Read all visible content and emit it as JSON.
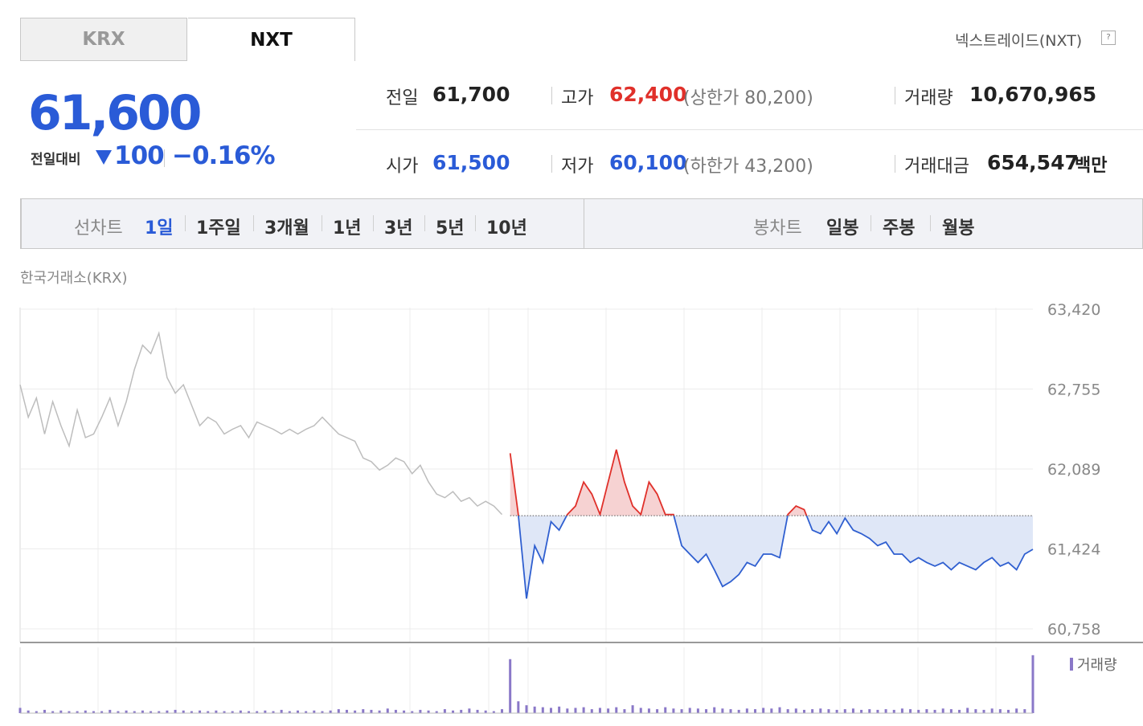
{
  "tabs": [
    "KRX",
    "NXT"
  ],
  "market_link": "넥스트레이드(NXT)",
  "price": {
    "current": "61,600",
    "change_label": "전일대비",
    "change": "100",
    "change_pct": "−0.16%"
  },
  "quotes": [
    {
      "label": "전일",
      "value": "61,700"
    },
    {
      "label": "고가",
      "value": "62,400",
      "note": "(상한가 80,200)"
    },
    {
      "label": "거래량",
      "value": "10,670,965"
    },
    {
      "label": "시가",
      "value": "61,500"
    },
    {
      "label": "저가",
      "value": "60,100",
      "note": "(하한가 43,200)"
    },
    {
      "label": "거래대금",
      "value": "654,547",
      "unit": "백만"
    }
  ],
  "line_tabs": {
    "label": "선차트",
    "items": [
      "1일",
      "1주일",
      "3개월",
      "1년",
      "3년",
      "5년",
      "10년"
    ]
  },
  "candle_tabs": {
    "label": "봉차트",
    "items": [
      "일봉",
      "주봉",
      "월봉"
    ]
  },
  "source": "한국거래소(KRX)",
  "chart_data": [
    {
      "type": "line",
      "ylim": [
        60644,
        63433
      ],
      "yticks": [
        {
          "value": 63420,
          "label": "63,420"
        },
        {
          "value": 62755,
          "label": "62,755"
        },
        {
          "value": 62089,
          "label": "62,089"
        },
        {
          "value": 61424,
          "label": "61,424"
        },
        {
          "value": 60758,
          "label": "60,758"
        }
      ],
      "grid": true,
      "baseline": 61700,
      "series": [
        {
          "color": "#bdbdbd",
          "values": [
            62790,
            62520,
            62680,
            62380,
            62650,
            62450,
            62280,
            62580,
            62350,
            62380,
            62520,
            62680,
            62450,
            62650,
            62920,
            63120,
            63050,
            63220,
            62850,
            62720,
            62790,
            62620,
            62450,
            62520,
            62480,
            62380,
            62420,
            62450,
            62350,
            62480,
            62450,
            62420,
            62380,
            62420,
            62380,
            62420,
            62450,
            62520,
            62450,
            62380,
            62350,
            62320,
            62180,
            62150,
            62080,
            62120,
            62180,
            62150,
            62050,
            62120,
            61980,
            61880,
            61850,
            61900,
            61820,
            61850,
            61780,
            61820,
            61780,
            61710,
            null,
            null,
            null,
            null,
            null,
            null,
            null,
            null,
            null,
            null,
            null,
            null,
            null,
            null,
            null,
            null,
            null,
            null,
            null,
            null,
            null,
            null,
            null,
            null,
            null,
            null,
            null,
            null,
            null,
            null,
            null,
            null,
            null,
            null,
            null,
            null,
            null,
            null,
            null,
            null,
            null,
            null,
            null,
            null,
            null,
            null,
            null,
            null,
            null,
            null,
            null,
            null,
            null,
            null,
            null,
            null,
            null,
            null,
            null,
            null,
            null,
            null,
            null,
            null,
            null
          ]
        },
        {
          "color": "#2f5fd0",
          "up_color": "#e0302a",
          "fill_color": "#dfe7f7",
          "up_fill_color": "#f6d2d2",
          "values": [
            null,
            null,
            null,
            null,
            null,
            null,
            null,
            null,
            null,
            null,
            null,
            null,
            null,
            null,
            null,
            null,
            null,
            null,
            null,
            null,
            null,
            null,
            null,
            null,
            null,
            null,
            null,
            null,
            null,
            null,
            null,
            null,
            null,
            null,
            null,
            null,
            null,
            null,
            null,
            null,
            null,
            null,
            null,
            null,
            null,
            null,
            null,
            null,
            null,
            null,
            null,
            null,
            null,
            null,
            null,
            null,
            null,
            null,
            null,
            null,
            62220,
            61710,
            61010,
            61450,
            61310,
            61650,
            61580,
            61710,
            61780,
            61980,
            61880,
            61710,
            61980,
            62250,
            61980,
            61780,
            61710,
            61980,
            61880,
            61710,
            61710,
            61450,
            61380,
            61310,
            61380,
            61250,
            61110,
            61150,
            61210,
            61310,
            61280,
            61380,
            61380,
            61350,
            61710,
            61780,
            61750,
            61580,
            61550,
            61650,
            61550,
            61680,
            61580,
            61550,
            61510,
            61450,
            61480,
            61380,
            61380,
            61310,
            61350,
            61310,
            61280,
            61310,
            61250,
            61310,
            61280,
            61250,
            61310,
            61350,
            61280,
            61310,
            61250,
            61380,
            61420
          ]
        }
      ]
    },
    {
      "type": "bar",
      "ylim": [
        0,
        100
      ],
      "series": [
        {
          "name": "거래량",
          "color": "#8a78c8",
          "values": [
            8,
            4,
            3,
            5,
            3,
            4,
            3,
            3,
            4,
            3,
            3,
            5,
            3,
            4,
            3,
            4,
            3,
            3,
            4,
            5,
            4,
            3,
            4,
            3,
            4,
            3,
            3,
            4,
            3,
            3,
            4,
            3,
            5,
            3,
            4,
            3,
            4,
            3,
            4,
            6,
            5,
            4,
            6,
            5,
            4,
            7,
            5,
            4,
            3,
            5,
            4,
            3,
            6,
            4,
            5,
            7,
            5,
            4,
            3,
            6,
            82,
            18,
            12,
            10,
            9,
            8,
            10,
            7,
            8,
            9,
            6,
            8,
            7,
            9,
            6,
            12,
            8,
            7,
            6,
            9,
            7,
            6,
            8,
            7,
            6,
            9,
            7,
            6,
            5,
            7,
            6,
            8,
            7,
            9,
            6,
            7,
            5,
            6,
            7,
            6,
            5,
            6,
            7,
            5,
            6,
            5,
            6,
            5,
            7,
            6,
            5,
            6,
            5,
            7,
            6,
            5,
            8,
            6,
            5,
            7,
            6,
            5,
            7,
            6,
            88
          ]
        }
      ]
    }
  ]
}
